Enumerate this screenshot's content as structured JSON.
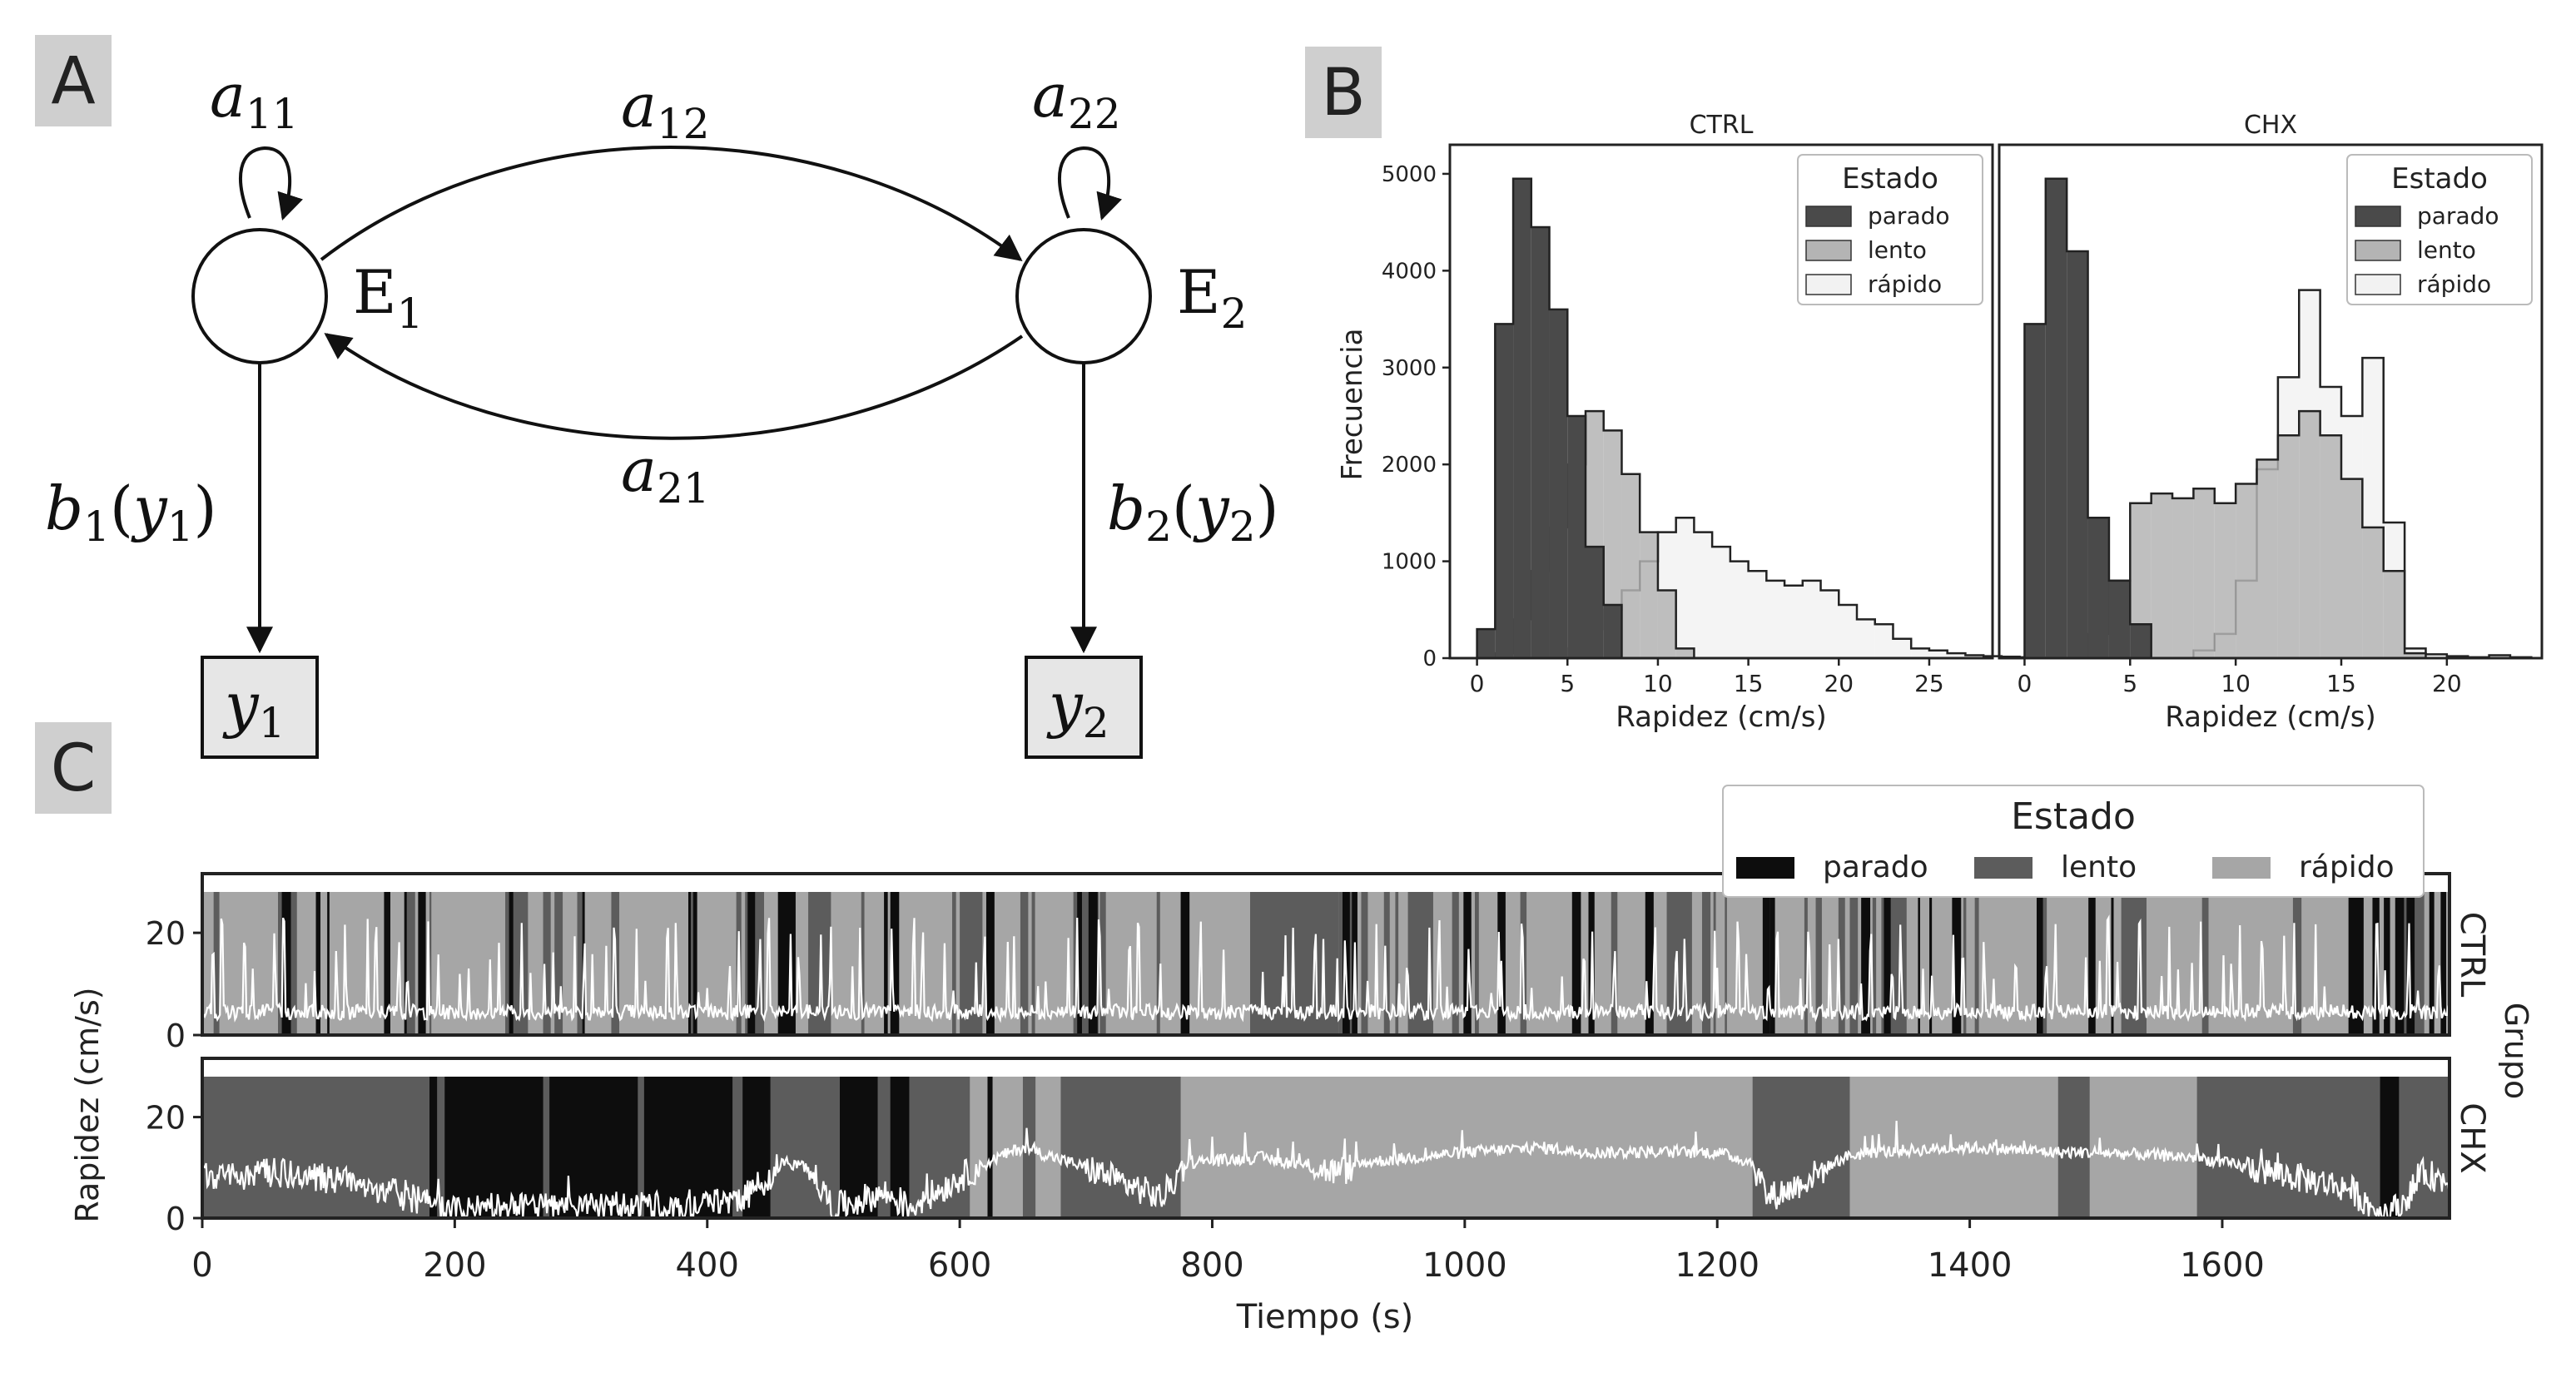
{
  "panels": {
    "A": {
      "label": "A"
    },
    "B": {
      "label": "B"
    },
    "C": {
      "label": "C"
    }
  },
  "diagram": {
    "nodes": [
      {
        "state": "E",
        "sub": "1",
        "obs": "y",
        "obs_sub": "1",
        "emission": "b",
        "emission_sub": "1",
        "emission_arg": "y",
        "emission_arg_sub": "1"
      },
      {
        "state": "E",
        "sub": "2",
        "obs": "y",
        "obs_sub": "2",
        "emission": "b",
        "emission_sub": "2",
        "emission_arg": "y",
        "emission_arg_sub": "2"
      }
    ],
    "transitions": [
      {
        "sym": "a",
        "sub": "11"
      },
      {
        "sym": "a",
        "sub": "12"
      },
      {
        "sym": "a",
        "sub": "22"
      },
      {
        "sym": "a",
        "sub": "21"
      }
    ]
  },
  "colors": {
    "parado_hist": "#4a4a4a",
    "lento_hist": "#b4b4b4",
    "rapido_hist": "#f2f2f2",
    "parado_band": "#0d0d0d",
    "lento_band": "#5c5c5c",
    "rapido_band": "#a6a6a6",
    "panel_label_bg": "#cfcfcf"
  },
  "chart_data": [
    {
      "type": "bar",
      "title": "CTRL",
      "xlabel": "Rapidez (cm/s)",
      "ylabel": "Frecuencia",
      "xlim": [
        -1.5,
        28.5
      ],
      "ylim": [
        0,
        5300
      ],
      "xticks": [
        0,
        5,
        10,
        15,
        20,
        25
      ],
      "yticks": [
        0,
        1000,
        2000,
        3000,
        4000,
        5000
      ],
      "legend": {
        "title": "Estado",
        "position": "top-right",
        "entries": [
          "parado",
          "lento",
          "rápido"
        ]
      },
      "bin_width": 1,
      "series": [
        {
          "name": "parado",
          "start": 0,
          "values": [
            300,
            3450,
            4950,
            4450,
            3600,
            2500,
            1150,
            550
          ]
        },
        {
          "name": "lento",
          "start": 1,
          "values": [
            50,
            400,
            900,
            1350,
            2000,
            2550,
            2350,
            1900,
            1300,
            700,
            100
          ]
        },
        {
          "name": "rápido",
          "start": 5,
          "values": [
            100,
            300,
            500,
            700,
            1000,
            1300,
            1450,
            1300,
            1150,
            1000,
            900,
            800,
            750,
            800,
            700,
            550,
            400,
            350,
            200,
            100,
            80,
            50,
            30,
            20,
            15,
            10,
            5
          ]
        }
      ]
    },
    {
      "type": "bar",
      "title": "CHX",
      "xlabel": "Rapidez (cm/s)",
      "ylabel": "",
      "xlim": [
        -1.2,
        24.5
      ],
      "ylim": [
        0,
        5300
      ],
      "xticks": [
        0,
        5,
        10,
        15,
        20
      ],
      "yticks": [
        0,
        1000,
        2000,
        3000,
        4000,
        5000
      ],
      "legend": {
        "title": "Estado",
        "position": "top-right",
        "entries": [
          "parado",
          "lento",
          "rápido"
        ]
      },
      "bin_width": 1,
      "series": [
        {
          "name": "parado",
          "start": 0,
          "values": [
            3450,
            4950,
            4200,
            1450,
            800,
            350
          ]
        },
        {
          "name": "lento",
          "start": 3,
          "values": [
            250,
            800,
            1600,
            1700,
            1650,
            1750,
            1600,
            1800,
            2050,
            2300,
            2550,
            2300,
            1850,
            1350,
            900,
            50
          ]
        },
        {
          "name": "rápido",
          "start": 8,
          "values": [
            80,
            250,
            800,
            1950,
            2900,
            3800,
            2800,
            2500,
            3100,
            1400,
            100,
            40,
            20,
            10,
            30,
            10
          ]
        }
      ]
    },
    {
      "type": "line",
      "xlabel": "Tiempo (s)",
      "ylabel": "Rapidez (cm/s)",
      "facet_label": "Grupo",
      "xlim": [
        0,
        1780
      ],
      "ylim": [
        0,
        28
      ],
      "xticks": [
        0,
        200,
        400,
        600,
        800,
        1000,
        1200,
        1400,
        1600
      ],
      "yticks": [
        0,
        20
      ],
      "legend": {
        "title": "Estado",
        "position": "top-right",
        "entries": [
          "parado",
          "lento",
          "rápido"
        ]
      },
      "panels": [
        {
          "name": "CTRL",
          "states": [
            {
              "state": "rápido",
              "from": 0,
              "to": 1780
            },
            {
              "state": "lento",
              "from": 60,
              "to": 75
            },
            {
              "state": "parado",
              "from": 160,
              "to": 166
            },
            {
              "state": "lento",
              "from": 240,
              "to": 258
            },
            {
              "state": "parado",
              "from": 298,
              "to": 303
            },
            {
              "state": "parado",
              "from": 385,
              "to": 392
            },
            {
              "state": "lento",
              "from": 430,
              "to": 445
            },
            {
              "state": "parado",
              "from": 456,
              "to": 470
            },
            {
              "state": "lento",
              "from": 480,
              "to": 498
            },
            {
              "state": "parado",
              "from": 545,
              "to": 552
            },
            {
              "state": "lento",
              "from": 600,
              "to": 618
            },
            {
              "state": "lento",
              "from": 690,
              "to": 710
            },
            {
              "state": "parado",
              "from": 775,
              "to": 782
            },
            {
              "state": "lento",
              "from": 830,
              "to": 900
            },
            {
              "state": "parado",
              "from": 903,
              "to": 915
            },
            {
              "state": "lento",
              "from": 955,
              "to": 975
            },
            {
              "state": "parado",
              "from": 1085,
              "to": 1092
            },
            {
              "state": "lento",
              "from": 1160,
              "to": 1180
            },
            {
              "state": "parado",
              "from": 1236,
              "to": 1242
            },
            {
              "state": "lento",
              "from": 1330,
              "to": 1350
            },
            {
              "state": "parado",
              "from": 1453,
              "to": 1460
            },
            {
              "state": "lento",
              "from": 1520,
              "to": 1540
            },
            {
              "state": "parado",
              "from": 1700,
              "to": 1712
            },
            {
              "state": "lento",
              "from": 1740,
              "to": 1760
            }
          ],
          "speed": {
            "baseline": 5,
            "peak_max": 23,
            "pattern": "oscillating"
          }
        },
        {
          "name": "CHX",
          "states": [
            {
              "state": "lento",
              "from": 0,
              "to": 1780
            },
            {
              "state": "parado",
              "from": 180,
              "to": 186
            },
            {
              "state": "parado",
              "from": 192,
              "to": 420
            },
            {
              "state": "lento",
              "from": 270,
              "to": 275
            },
            {
              "state": "lento",
              "from": 345,
              "to": 350
            },
            {
              "state": "parado",
              "from": 428,
              "to": 450
            },
            {
              "state": "parado",
              "from": 505,
              "to": 535
            },
            {
              "state": "parado",
              "from": 545,
              "to": 560
            },
            {
              "state": "rápido",
              "from": 608,
              "to": 650
            },
            {
              "state": "parado",
              "from": 622,
              "to": 626
            },
            {
              "state": "rápido",
              "from": 660,
              "to": 680
            },
            {
              "state": "rápido",
              "from": 775,
              "to": 1228
            },
            {
              "state": "rápido",
              "from": 1305,
              "to": 1470
            },
            {
              "state": "rápido",
              "from": 1495,
              "to": 1580
            },
            {
              "state": "parado",
              "from": 1725,
              "to": 1740
            }
          ],
          "speed": [
            [
              0,
              8
            ],
            [
              60,
              9
            ],
            [
              120,
              7
            ],
            [
              180,
              3
            ],
            [
              200,
              2
            ],
            [
              300,
              2
            ],
            [
              400,
              3
            ],
            [
              430,
              4
            ],
            [
              460,
              11
            ],
            [
              480,
              10
            ],
            [
              500,
              2
            ],
            [
              540,
              5
            ],
            [
              560,
              2
            ],
            [
              600,
              8
            ],
            [
              630,
              12
            ],
            [
              650,
              14
            ],
            [
              700,
              10
            ],
            [
              760,
              4
            ],
            [
              780,
              11
            ],
            [
              840,
              12
            ],
            [
              900,
              9
            ],
            [
              920,
              11
            ],
            [
              1000,
              13
            ],
            [
              1060,
              14
            ],
            [
              1100,
              13
            ],
            [
              1200,
              13
            ],
            [
              1228,
              11
            ],
            [
              1240,
              4
            ],
            [
              1260,
              6
            ],
            [
              1300,
              12
            ],
            [
              1320,
              13
            ],
            [
              1400,
              14
            ],
            [
              1470,
              13
            ],
            [
              1500,
              13
            ],
            [
              1580,
              12
            ],
            [
              1600,
              11
            ],
            [
              1700,
              6
            ],
            [
              1725,
              1
            ],
            [
              1740,
              2
            ],
            [
              1760,
              9
            ],
            [
              1780,
              7
            ]
          ]
        }
      ]
    }
  ]
}
